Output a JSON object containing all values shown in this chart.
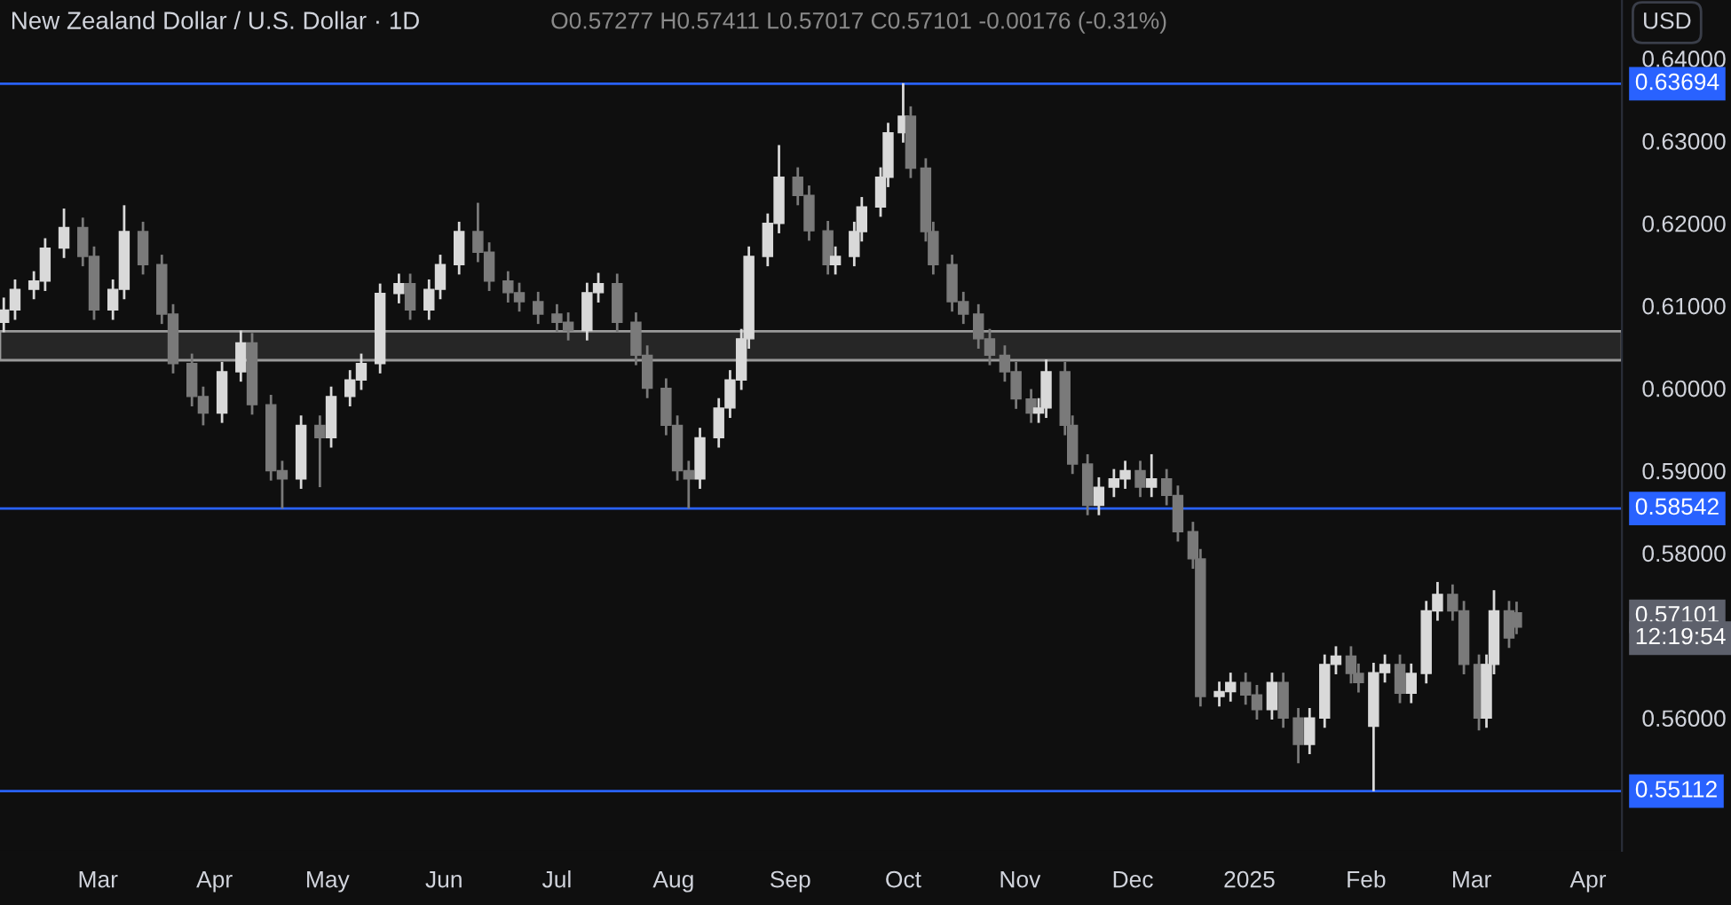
{
  "chart_data": {
    "type": "candlestick",
    "title": "New Zealand Dollar / U.S. Dollar · 1D",
    "annotations": [
      "O0.57277 H0.57411 L0.57017 C0.57101 -0.00176 (-0.31%)",
      "USD",
      "0.57101",
      "12:19:54"
    ],
    "colors": [
      "#d9d9d9",
      "#d9d9d9",
      "#d9d9d9",
      "#d9d9d9",
      "#d9d9d9",
      "#7a7a7a",
      "#7a7a7a",
      "#d9d9d9",
      "#d9d9d9",
      "#7a7a7a",
      "#7a7a7a",
      "#7a7a7a",
      "#7a7a7a",
      "#7a7a7a",
      "#d9d9d9",
      "#d9d9d9",
      "#7a7a7a",
      "#7a7a7a",
      "#7a7a7a",
      "#d9d9d9",
      "#7a7a7a",
      "#d9d9d9",
      "#d9d9d9",
      "#d9d9d9",
      "#d9d9d9",
      "#d9d9d9",
      "#7a7a7a",
      "#d9d9d9",
      "#d9d9d9",
      "#d9d9d9",
      "#7a7a7a",
      "#7a7a7a",
      "#7a7a7a",
      "#7a7a7a",
      "#7a7a7a",
      "#7a7a7a",
      "#7a7a7a",
      "#d9d9d9",
      "#d9d9d9",
      "#7a7a7a",
      "#7a7a7a",
      "#7a7a7a",
      "#7a7a7a",
      "#7a7a7a",
      "#7a7a7a",
      "#d9d9d9",
      "#d9d9d9",
      "#d9d9d9",
      "#d9d9d9",
      "#d9d9d9",
      "#d9d9d9",
      "#d9d9d9",
      "#7a7a7a",
      "#7a7a7a",
      "#7a7a7a",
      "#d9d9d9",
      "#d9d9d9",
      "#d9d9d9",
      "#d9d9d9",
      "#d9d9d9",
      "#d9d9d9",
      "#7a7a7a",
      "#7a7a7a",
      "#7a7a7a",
      "#7a7a7a",
      "#7a7a7a",
      "#7a7a7a",
      "#7a7a7a",
      "#7a7a7a",
      "#7a7a7a",
      "#7a7a7a",
      "#d9d9d9",
      "#d9d9d9",
      "#7a7a7a",
      "#7a7a7a",
      "#7a7a7a",
      "#d9d9d9",
      "#d9d9d9",
      "#d9d9d9",
      "#7a7a7a",
      "#d9d9d9",
      "#7a7a7a",
      "#7a7a7a",
      "#7a7a7a",
      "#7a7a7a",
      "#d9d9d9",
      "#d9d9d9",
      "#7a7a7a",
      "#7a7a7a",
      "#d9d9d9",
      "#7a7a7a",
      "#7a7a7a",
      "#d9d9d9",
      "#d9d9d9",
      "#d9d9d9",
      "#7a7a7a",
      "#7a7a7a",
      "#d9d9d9",
      "#d9d9d9",
      "#7a7a7a",
      "#d9d9d9",
      "#d9d9d9",
      "#d9d9d9",
      "#7a7a7a",
      "#7a7a7a",
      "#7a7a7a",
      "#d9d9d9",
      "#d9d9d9",
      "#7a7a7a",
      "#7a7a7a"
    ],
    "x": [
      "2024-02-05",
      "2024-02-08",
      "2024-02-13",
      "2024-02-16",
      "2024-02-21",
      "2024-02-26",
      "2024-02-29",
      "2024-03-05",
      "2024-03-08",
      "2024-03-13",
      "2024-03-18",
      "2024-03-21",
      "2024-03-26",
      "2024-03-29",
      "2024-04-03",
      "2024-04-08",
      "2024-04-11",
      "2024-04-16",
      "2024-04-19",
      "2024-04-24",
      "2024-04-29",
      "2024-05-02",
      "2024-05-07",
      "2024-05-10",
      "2024-05-15",
      "2024-05-20",
      "2024-05-23",
      "2024-05-28",
      "2024-05-31",
      "2024-06-05",
      "2024-06-10",
      "2024-06-13",
      "2024-06-18",
      "2024-06-21",
      "2024-06-26",
      "2024-07-01",
      "2024-07-04",
      "2024-07-09",
      "2024-07-12",
      "2024-07-17",
      "2024-07-22",
      "2024-07-25",
      "2024-07-30",
      "2024-08-02",
      "2024-08-05",
      "2024-08-08",
      "2024-08-13",
      "2024-08-16",
      "2024-08-19",
      "2024-08-21",
      "2024-08-26",
      "2024-08-29",
      "2024-09-03",
      "2024-09-06",
      "2024-09-11",
      "2024-09-13",
      "2024-09-18",
      "2024-09-20",
      "2024-09-25",
      "2024-09-27",
      "2024-10-01",
      "2024-10-03",
      "2024-10-07",
      "2024-10-09",
      "2024-10-14",
      "2024-10-17",
      "2024-10-21",
      "2024-10-24",
      "2024-10-28",
      "2024-10-31",
      "2024-11-04",
      "2024-11-06",
      "2024-11-08",
      "2024-11-13",
      "2024-11-15",
      "2024-11-19",
      "2024-11-22",
      "2024-11-26",
      "2024-11-29",
      "2024-12-03",
      "2024-12-06",
      "2024-12-10",
      "2024-12-13",
      "2024-12-17",
      "2024-12-19",
      "2024-12-24",
      "2024-12-27",
      "2024-12-31",
      "2025-01-03",
      "2025-01-07",
      "2025-01-10",
      "2025-01-14",
      "2025-01-17",
      "2025-01-21",
      "2025-01-24",
      "2025-01-28",
      "2025-01-30",
      "2025-02-03",
      "2025-02-06",
      "2025-02-10",
      "2025-02-13",
      "2025-02-17",
      "2025-02-20",
      "2025-02-24",
      "2025-02-27",
      "2025-03-03",
      "2025-03-05",
      "2025-03-07",
      "2025-03-11",
      "2025-03-13"
    ],
    "ohlc": [
      [
        0.608,
        0.611,
        0.6068,
        0.6095
      ],
      [
        0.6095,
        0.6132,
        0.6083,
        0.612
      ],
      [
        0.612,
        0.6142,
        0.6108,
        0.613
      ],
      [
        0.613,
        0.6182,
        0.6118,
        0.617
      ],
      [
        0.617,
        0.6218,
        0.6158,
        0.6195
      ],
      [
        0.6195,
        0.6207,
        0.6148,
        0.616
      ],
      [
        0.616,
        0.6172,
        0.6083,
        0.6095
      ],
      [
        0.6095,
        0.6132,
        0.6083,
        0.612
      ],
      [
        0.612,
        0.6222,
        0.6108,
        0.619
      ],
      [
        0.619,
        0.6202,
        0.6138,
        0.615
      ],
      [
        0.615,
        0.6162,
        0.6078,
        0.609
      ],
      [
        0.609,
        0.6102,
        0.6018,
        0.603
      ],
      [
        0.603,
        0.6042,
        0.5978,
        0.599
      ],
      [
        0.599,
        0.6002,
        0.5955,
        0.597
      ],
      [
        0.597,
        0.6032,
        0.5958,
        0.602
      ],
      [
        0.602,
        0.607,
        0.6008,
        0.6055
      ],
      [
        0.6055,
        0.6067,
        0.5968,
        0.598
      ],
      [
        0.598,
        0.5992,
        0.5888,
        0.59
      ],
      [
        0.59,
        0.5912,
        0.5854,
        0.589
      ],
      [
        0.589,
        0.5967,
        0.5878,
        0.5955
      ],
      [
        0.5955,
        0.5967,
        0.588,
        0.594
      ],
      [
        0.594,
        0.6002,
        0.5928,
        0.599
      ],
      [
        0.599,
        0.6022,
        0.5978,
        0.601
      ],
      [
        0.601,
        0.6042,
        0.5998,
        0.603
      ],
      [
        0.603,
        0.6127,
        0.6018,
        0.6115
      ],
      [
        0.6115,
        0.6139,
        0.6103,
        0.6127
      ],
      [
        0.6127,
        0.6139,
        0.6083,
        0.6095
      ],
      [
        0.6095,
        0.6132,
        0.6083,
        0.612
      ],
      [
        0.612,
        0.6162,
        0.6108,
        0.615
      ],
      [
        0.615,
        0.6202,
        0.6138,
        0.619
      ],
      [
        0.619,
        0.6225,
        0.6153,
        0.6165
      ],
      [
        0.6165,
        0.6177,
        0.6118,
        0.613
      ],
      [
        0.613,
        0.6142,
        0.6104,
        0.6116
      ],
      [
        0.6116,
        0.6128,
        0.6093,
        0.6105
      ],
      [
        0.6105,
        0.6117,
        0.6078,
        0.609
      ],
      [
        0.609,
        0.6102,
        0.6068,
        0.608
      ],
      [
        0.608,
        0.6092,
        0.6058,
        0.607
      ],
      [
        0.607,
        0.6128,
        0.6058,
        0.6116
      ],
      [
        0.6116,
        0.614,
        0.6104,
        0.6127
      ],
      [
        0.6127,
        0.6139,
        0.6068,
        0.608
      ],
      [
        0.608,
        0.6092,
        0.6028,
        0.604
      ],
      [
        0.604,
        0.6052,
        0.5988,
        0.6
      ],
      [
        0.6,
        0.6012,
        0.5943,
        0.5955
      ],
      [
        0.5955,
        0.5967,
        0.5888,
        0.59
      ],
      [
        0.59,
        0.5912,
        0.5854,
        0.589
      ],
      [
        0.589,
        0.5952,
        0.5878,
        0.594
      ],
      [
        0.594,
        0.5988,
        0.5928,
        0.5976
      ],
      [
        0.5976,
        0.6022,
        0.5964,
        0.601
      ],
      [
        0.601,
        0.6072,
        0.5998,
        0.606
      ],
      [
        0.606,
        0.6172,
        0.6048,
        0.616
      ],
      [
        0.616,
        0.6212,
        0.6148,
        0.62
      ],
      [
        0.62,
        0.6295,
        0.6188,
        0.6256
      ],
      [
        0.6256,
        0.6268,
        0.6222,
        0.6234
      ],
      [
        0.6234,
        0.6246,
        0.6179,
        0.6191
      ],
      [
        0.6191,
        0.6203,
        0.6138,
        0.615
      ],
      [
        0.615,
        0.6172,
        0.6138,
        0.616
      ],
      [
        0.616,
        0.6202,
        0.6148,
        0.619
      ],
      [
        0.619,
        0.6232,
        0.6178,
        0.622
      ],
      [
        0.622,
        0.6268,
        0.6208,
        0.6256
      ],
      [
        0.6256,
        0.6322,
        0.6244,
        0.631
      ],
      [
        0.631,
        0.637,
        0.6298,
        0.633
      ],
      [
        0.633,
        0.6342,
        0.6255,
        0.6267
      ],
      [
        0.6267,
        0.6279,
        0.6178,
        0.619
      ],
      [
        0.619,
        0.6202,
        0.6138,
        0.615
      ],
      [
        0.615,
        0.6162,
        0.6093,
        0.6105
      ],
      [
        0.6105,
        0.6117,
        0.6078,
        0.609
      ],
      [
        0.609,
        0.6102,
        0.6048,
        0.606
      ],
      [
        0.606,
        0.6072,
        0.6028,
        0.604
      ],
      [
        0.604,
        0.6052,
        0.6008,
        0.602
      ],
      [
        0.602,
        0.6032,
        0.5975,
        0.5987
      ],
      [
        0.5987,
        0.5999,
        0.5958,
        0.597
      ],
      [
        0.597,
        0.5988,
        0.5958,
        0.5976
      ],
      [
        0.5976,
        0.6035,
        0.5964,
        0.602
      ],
      [
        0.602,
        0.6032,
        0.5943,
        0.5955
      ],
      [
        0.5955,
        0.5967,
        0.5896,
        0.5908
      ],
      [
        0.5908,
        0.592,
        0.5846,
        0.5858
      ],
      [
        0.5858,
        0.5892,
        0.5846,
        0.588
      ],
      [
        0.588,
        0.5902,
        0.5868,
        0.589
      ],
      [
        0.589,
        0.5912,
        0.5878,
        0.59
      ],
      [
        0.59,
        0.5912,
        0.5868,
        0.588
      ],
      [
        0.588,
        0.592,
        0.5868,
        0.589
      ],
      [
        0.589,
        0.5902,
        0.5858,
        0.587
      ],
      [
        0.587,
        0.5882,
        0.5814,
        0.5826
      ],
      [
        0.5826,
        0.5838,
        0.5781,
        0.5793
      ],
      [
        0.5793,
        0.5805,
        0.5614,
        0.5626
      ],
      [
        0.5626,
        0.5644,
        0.5614,
        0.5632
      ],
      [
        0.5632,
        0.5655,
        0.562,
        0.5643
      ],
      [
        0.5643,
        0.5655,
        0.5616,
        0.5628
      ],
      [
        0.5628,
        0.564,
        0.5598,
        0.561
      ],
      [
        0.561,
        0.5655,
        0.5598,
        0.5643
      ],
      [
        0.5643,
        0.5655,
        0.5588,
        0.56
      ],
      [
        0.56,
        0.5612,
        0.5545,
        0.5568
      ],
      [
        0.5568,
        0.5612,
        0.5556,
        0.56
      ],
      [
        0.56,
        0.5677,
        0.5588,
        0.5665
      ],
      [
        0.5665,
        0.5687,
        0.5653,
        0.5675
      ],
      [
        0.5675,
        0.5687,
        0.5642,
        0.5654
      ],
      [
        0.5654,
        0.5666,
        0.5631,
        0.5643
      ],
      [
        0.559,
        0.5667,
        0.55112,
        0.5655
      ],
      [
        0.5655,
        0.5677,
        0.5643,
        0.5665
      ],
      [
        0.5665,
        0.5677,
        0.5618,
        0.563
      ],
      [
        0.563,
        0.5666,
        0.5618,
        0.5654
      ],
      [
        0.5654,
        0.5742,
        0.5642,
        0.573
      ],
      [
        0.573,
        0.5765,
        0.5718,
        0.575
      ],
      [
        0.575,
        0.5762,
        0.5718,
        0.573
      ],
      [
        0.573,
        0.5742,
        0.5653,
        0.5665
      ],
      [
        0.5665,
        0.5677,
        0.5585,
        0.56
      ],
      [
        0.56,
        0.5677,
        0.5588,
        0.5665
      ],
      [
        0.5665,
        0.5755,
        0.5653,
        0.573
      ],
      [
        0.573,
        0.5742,
        0.5685,
        0.5697
      ],
      [
        0.57277,
        0.57411,
        0.57017,
        0.57101
      ]
    ],
    "xlim": [
      "2024-02-04",
      "2025-04-10"
    ],
    "xticks": [
      {
        "value": "2024-03-01",
        "label": "Mar"
      },
      {
        "value": "2024-04-01",
        "label": "Apr"
      },
      {
        "value": "2024-05-01",
        "label": "May"
      },
      {
        "value": "2024-06-01",
        "label": "Jun"
      },
      {
        "value": "2024-07-01",
        "label": "Jul"
      },
      {
        "value": "2024-08-01",
        "label": "Aug"
      },
      {
        "value": "2024-09-01",
        "label": "Sep"
      },
      {
        "value": "2024-10-01",
        "label": "Oct"
      },
      {
        "value": "2024-11-01",
        "label": "Nov"
      },
      {
        "value": "2024-12-01",
        "label": "Dec"
      },
      {
        "value": "2025-01-01",
        "label": "2025"
      },
      {
        "value": "2025-02-01",
        "label": "Feb"
      },
      {
        "value": "2025-03-01",
        "label": "Mar"
      },
      {
        "value": "2025-04-01",
        "label": "Apr"
      }
    ],
    "ylim": [
      0.5439,
      0.6471
    ],
    "yticks": [
      {
        "value": 0.56,
        "label": "0.56000"
      },
      {
        "value": 0.58,
        "label": "0.58000"
      },
      {
        "value": 0.59,
        "label": "0.59000"
      },
      {
        "value": 0.6,
        "label": "0.60000"
      },
      {
        "value": 0.61,
        "label": "0.61000"
      },
      {
        "value": 0.62,
        "label": "0.62000"
      },
      {
        "value": 0.63,
        "label": "0.63000"
      },
      {
        "value": 0.64,
        "label": "0.64000"
      }
    ],
    "ref_lines": [
      {
        "axis": "y",
        "value": 0.63694,
        "label": "0.63694",
        "color": "#2962ff"
      },
      {
        "axis": "y",
        "value": 0.58542,
        "label": "0.58542",
        "color": "#2962ff"
      },
      {
        "axis": "y",
        "value": 0.55112,
        "label": "0.55112",
        "color": "#2962ff"
      }
    ],
    "bands": [
      {
        "axis": "y",
        "from": 0.6034,
        "to": 0.6069,
        "color": "#9a9a9a"
      }
    ],
    "grid": false,
    "legend": false
  }
}
